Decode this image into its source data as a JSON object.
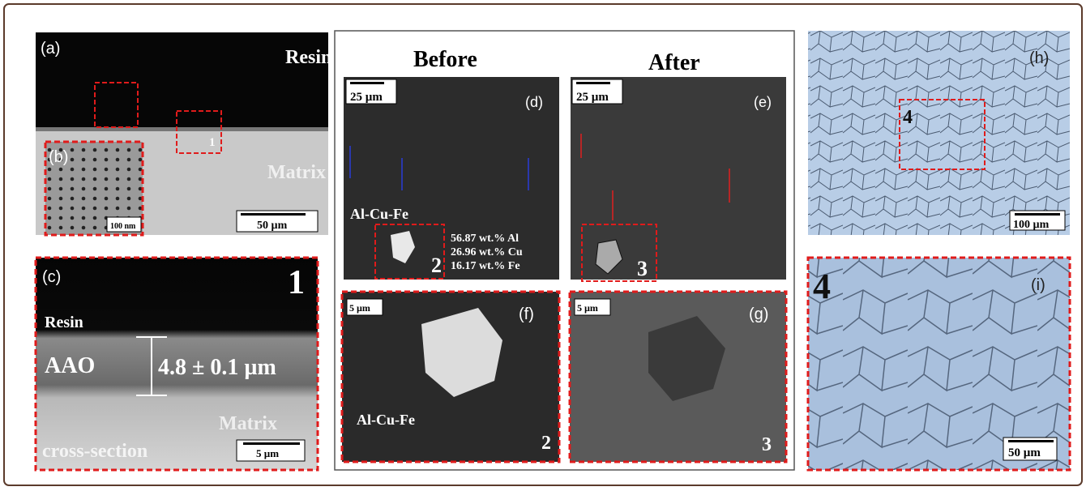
{
  "headings": {
    "before": "Before",
    "after": "After"
  },
  "panels": {
    "a": {
      "label": "(a)",
      "resin": "Resin",
      "matrix": "Matrix",
      "box": "1",
      "scale": "50 µm"
    },
    "b": {
      "label": "(b)",
      "scale": "100 nm"
    },
    "c": {
      "label": "(c)",
      "number": "1",
      "resin": "Resin",
      "aao": "AAO",
      "thickness": "4.8 ± 0.1 µm",
      "matrix": "Matrix",
      "section": "cross-section",
      "scale": "5 µm"
    },
    "d": {
      "label": "(d)",
      "scale": "25 µm",
      "phase": "Al-Cu-Fe",
      "composition": [
        "56.87 wt.% Al",
        "26.96 wt.% Cu",
        "16.17 wt.% Fe"
      ],
      "box": "2"
    },
    "e": {
      "label": "(e)",
      "scale": "25 µm",
      "box": "3"
    },
    "f": {
      "label": "(f)",
      "scale": "5 µm",
      "phase": "Al-Cu-Fe",
      "number": "2"
    },
    "g": {
      "label": "(g)",
      "scale": "5 µm",
      "number": "3"
    },
    "h": {
      "label": "(h)",
      "box": "4",
      "scale": "100 µm"
    },
    "i": {
      "label": "(i)",
      "number": "4",
      "scale": "50 µm"
    }
  }
}
